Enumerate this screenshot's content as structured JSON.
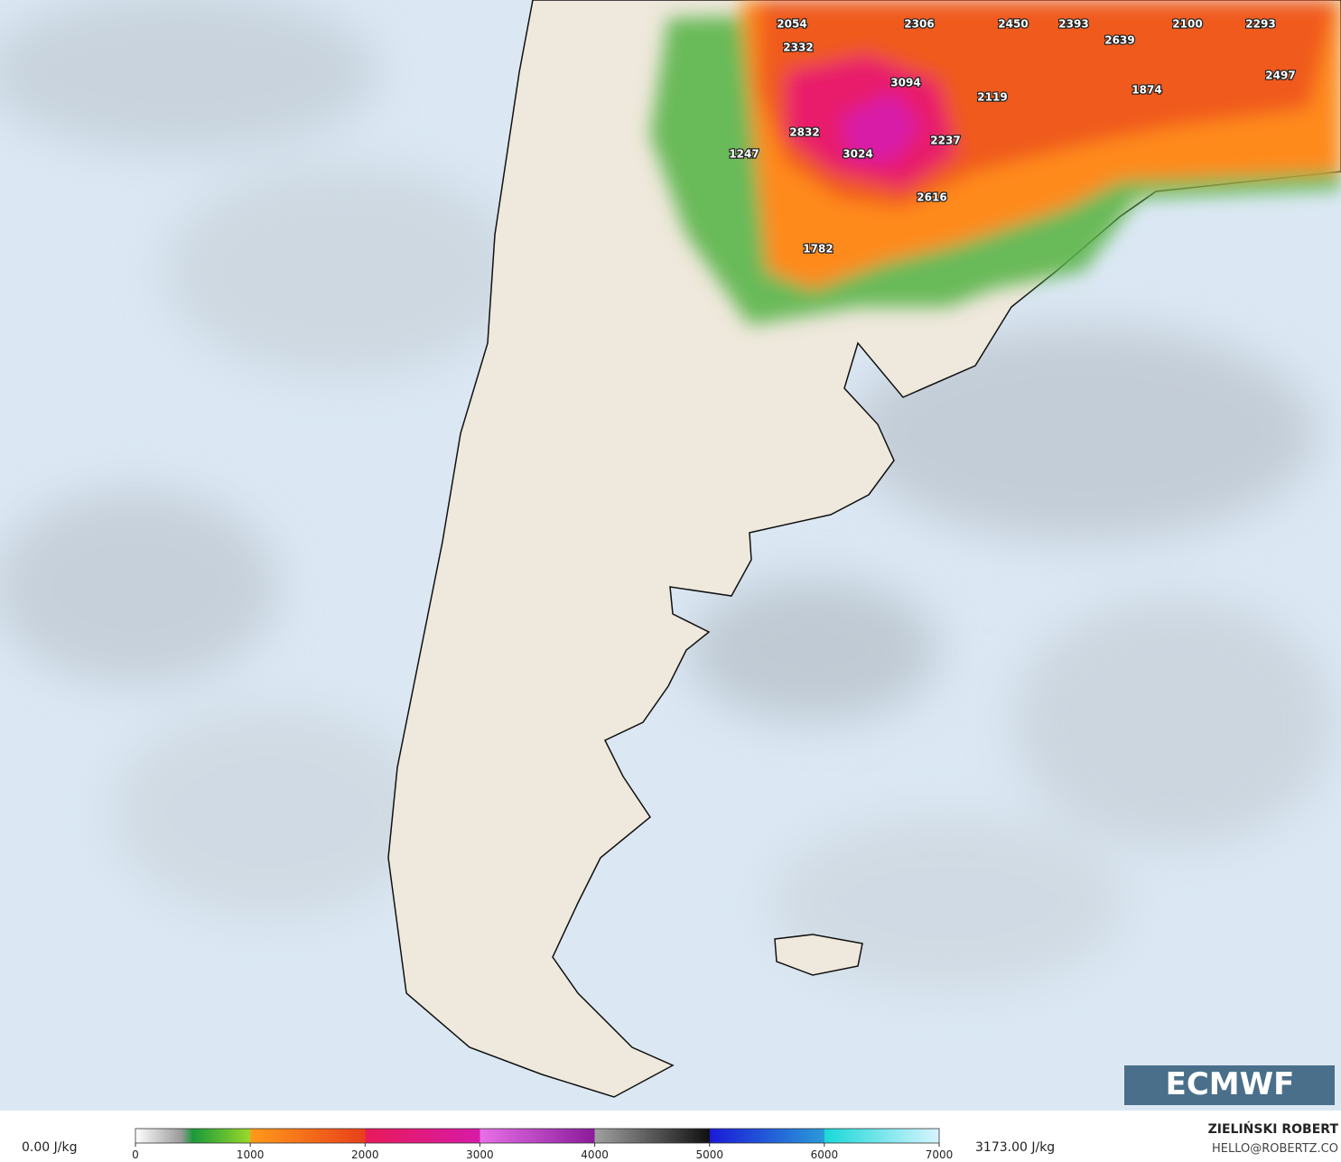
{
  "map": {
    "cape_labels": [
      2054,
      2306,
      2450,
      2393,
      2100,
      2293,
      2332,
      2639,
      3094,
      2497,
      2119,
      1874,
      2832,
      2237,
      1247,
      3024,
      2616,
      1782
    ],
    "logo": "ECMWF"
  },
  "colorbar": {
    "min_label": "0.00 J/kg",
    "max_label": "3173.00 J/kg",
    "lim": [
      0,
      7000
    ],
    "ticks": [
      0,
      1000,
      2000,
      3000,
      4000,
      5000,
      6000,
      7000
    ],
    "stops": [
      {
        "value": 0,
        "color": "#ffffff"
      },
      {
        "value": 400,
        "color": "#9a9a9a"
      },
      {
        "value": 500,
        "color": "#1a9a3a"
      },
      {
        "value": 1000,
        "color": "#9ad82a"
      },
      {
        "value": 1001,
        "color": "#ff9a1a"
      },
      {
        "value": 2000,
        "color": "#e8401a"
      },
      {
        "value": 2001,
        "color": "#e81a5a"
      },
      {
        "value": 3000,
        "color": "#d81aa8"
      },
      {
        "value": 3001,
        "color": "#e870e8"
      },
      {
        "value": 4000,
        "color": "#8a1a9a"
      },
      {
        "value": 4001,
        "color": "#a0a0a0"
      },
      {
        "value": 5000,
        "color": "#101010"
      },
      {
        "value": 5001,
        "color": "#1a1ad8"
      },
      {
        "value": 6000,
        "color": "#2a9ad8"
      },
      {
        "value": 6001,
        "color": "#1ad8d8"
      },
      {
        "value": 7000,
        "color": "#d8f4ff"
      }
    ]
  },
  "credits": {
    "name": "ZIELIŃSKI ROBERT",
    "contact": "HELLO@ROBERTZ.CO"
  }
}
